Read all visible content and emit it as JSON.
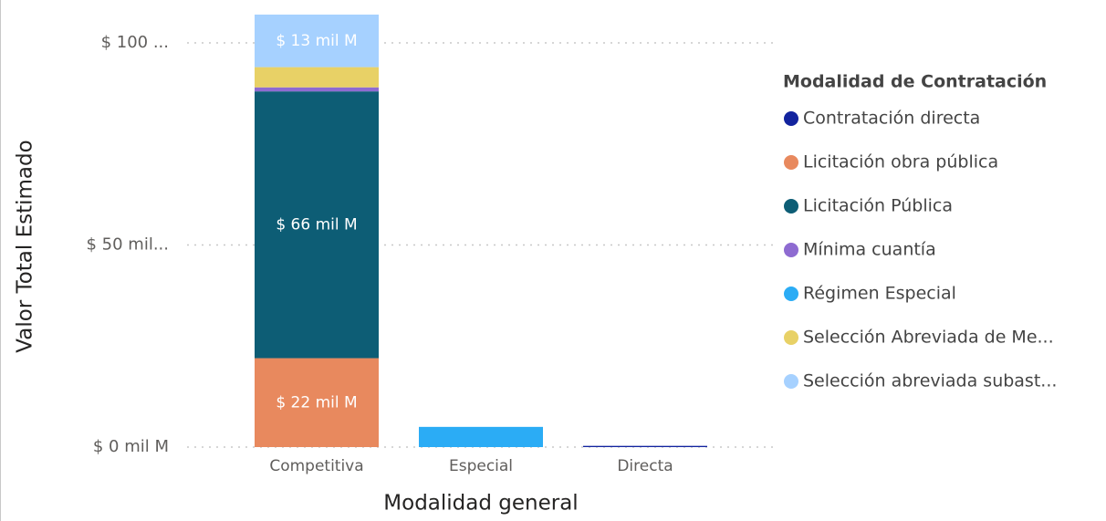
{
  "chart_data": {
    "type": "stacked_bar",
    "x_label": "Modalidad general",
    "y_label": "Valor Total Estimado",
    "legend_title": "Modalidad de Contratación",
    "legend": "right",
    "grid": true,
    "categories": [
      "Competitiva",
      "Especial",
      "Directa"
    ],
    "ylim": [
      0,
      100
    ],
    "yticks": [
      {
        "value": 0,
        "label": "$ 0 mil M"
      },
      {
        "value": 50,
        "label": "$ 50 mil..."
      },
      {
        "value": 100,
        "label": "$ 100 ..."
      }
    ],
    "series": [
      {
        "name": "Contratación directa",
        "color": "#12239e",
        "values": [
          null,
          null,
          0.3
        ]
      },
      {
        "name": "Licitación obra pública",
        "color": "#e8895e",
        "values": [
          22,
          null,
          null
        ],
        "value_labels": [
          "$ 22 mil M",
          null,
          null
        ]
      },
      {
        "name": "Licitación Pública",
        "color": "#0d5d75",
        "values": [
          66,
          null,
          null
        ],
        "value_labels": [
          "$ 66 mil M",
          null,
          null
        ]
      },
      {
        "name": "Mínima cuantía",
        "color": "#8e6bd1",
        "values": [
          1,
          null,
          null
        ]
      },
      {
        "name": "Régimen Especial",
        "color": "#2bacf5",
        "values": [
          null,
          5,
          null
        ]
      },
      {
        "name": "Selección Abreviada de Me...",
        "color": "#e8d166",
        "values": [
          5,
          null,
          null
        ]
      },
      {
        "name": "Selección abreviada subast...",
        "color": "#a6d1ff",
        "values": [
          13,
          null,
          null
        ],
        "value_labels": [
          "$ 13 mil M",
          null,
          null
        ]
      }
    ]
  }
}
